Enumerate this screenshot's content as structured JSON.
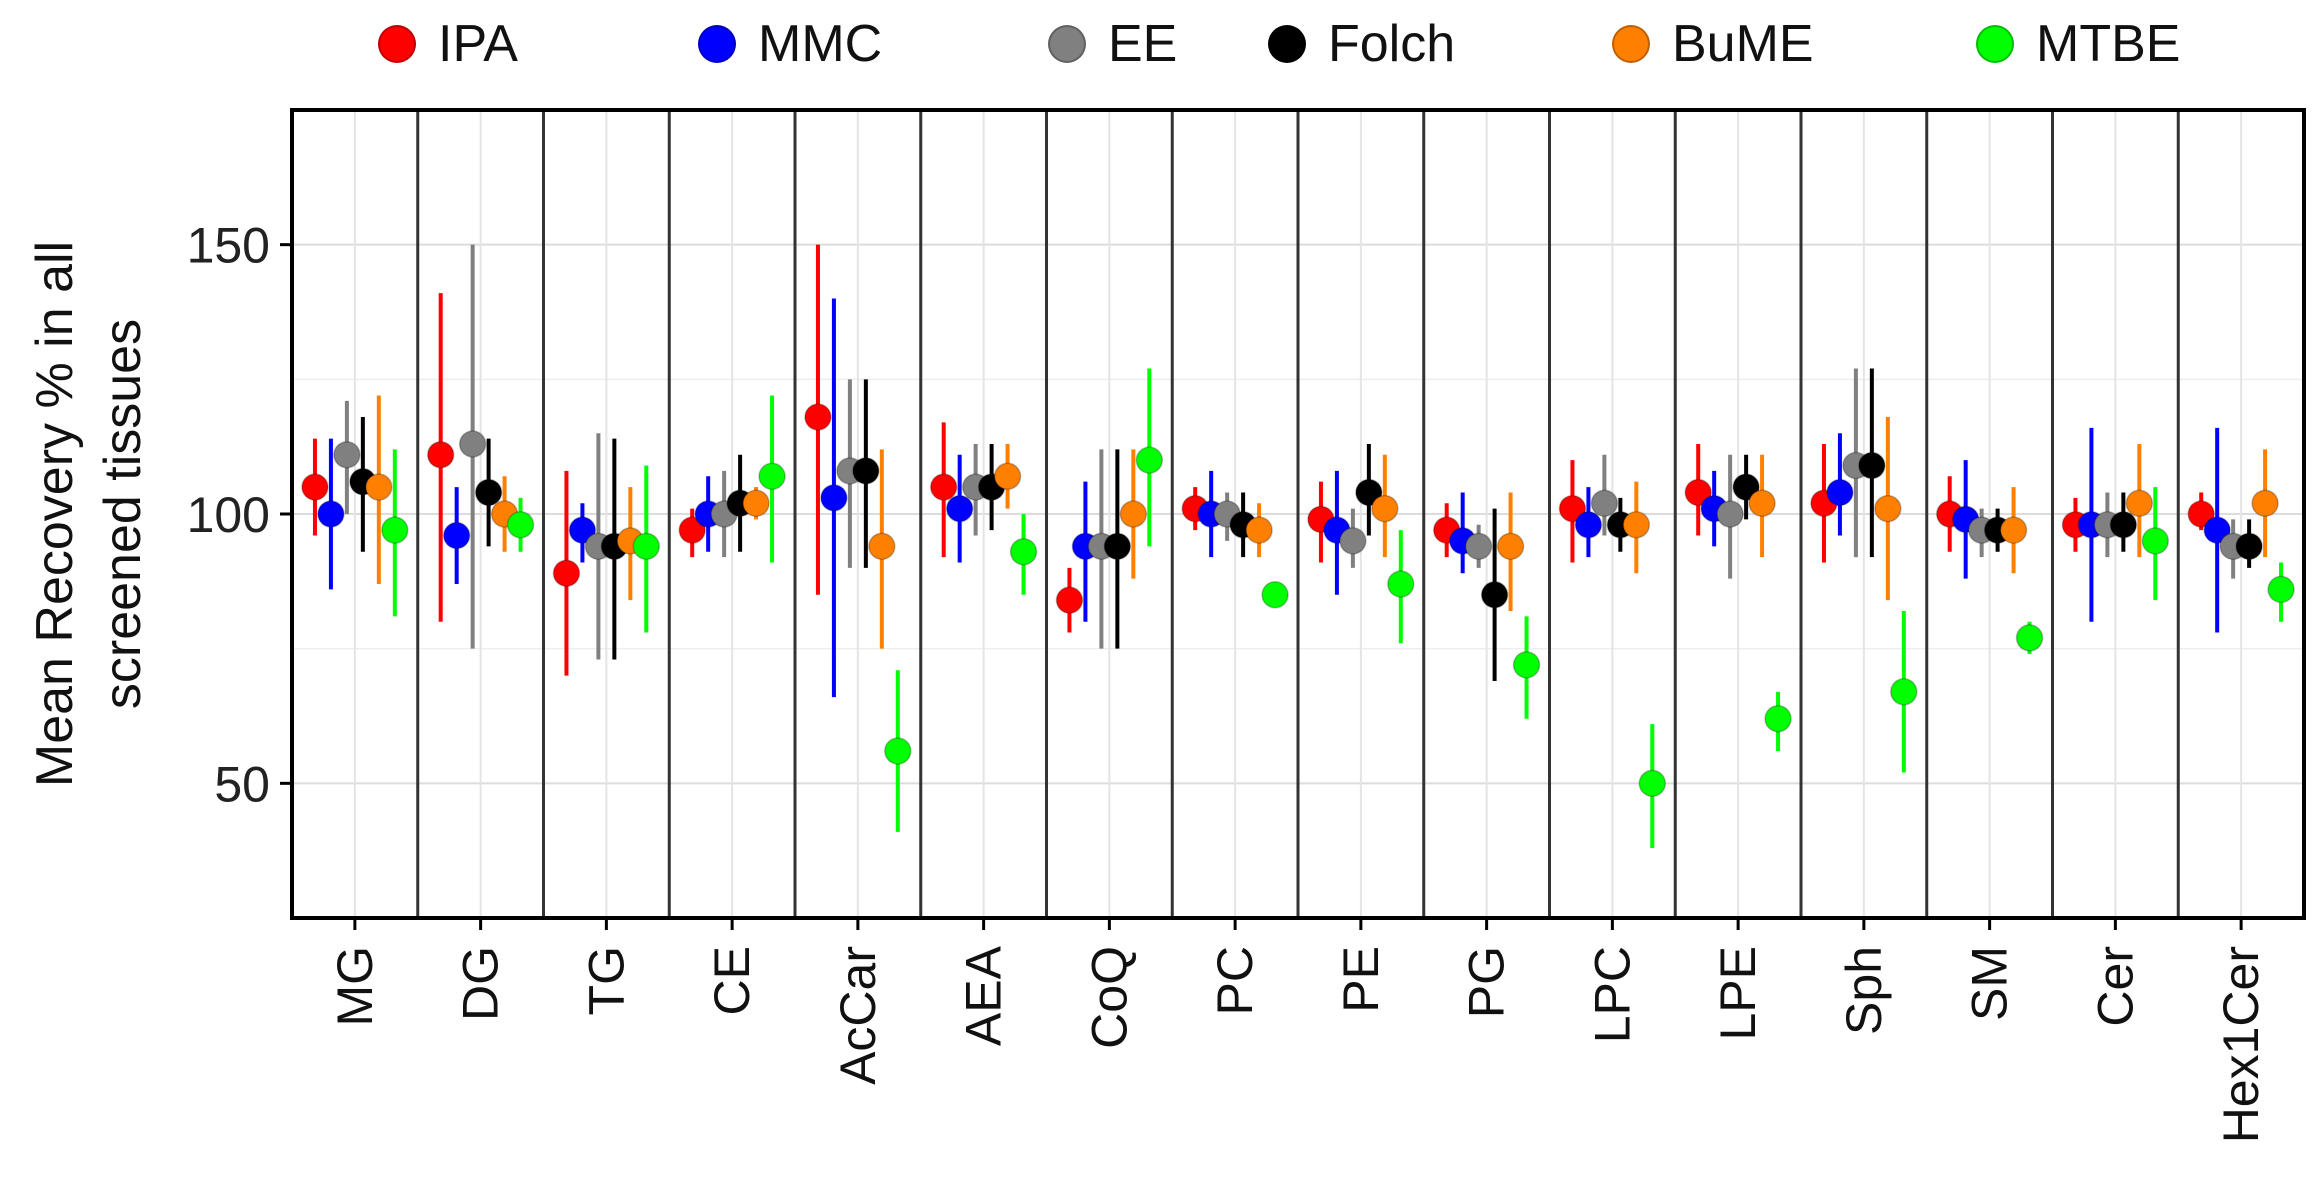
{
  "chart_data": {
    "type": "scatter",
    "subtype": "dot-and-error-bar (mean with range), grouped by lipid class",
    "ylabel_lines": [
      "Mean Recovery % in all",
      "screened tissues"
    ],
    "xlabel": "",
    "ylim": [
      25,
      175
    ],
    "yticks": [
      50,
      100,
      150
    ],
    "grid": true,
    "legend_position": "top",
    "categories": [
      "MG",
      "DG",
      "TG",
      "CE",
      "AcCar",
      "AEA",
      "CoQ",
      "PC",
      "PE",
      "PG",
      "LPC",
      "LPE",
      "Sph",
      "SM",
      "Cer",
      "Hex1Cer"
    ],
    "series": [
      {
        "name": "IPA",
        "color": "#ff0000",
        "values": [
          105,
          111,
          89,
          97,
          118,
          105,
          84,
          101,
          99,
          97,
          101,
          104,
          102,
          100,
          98,
          100
        ],
        "lower": [
          96,
          80,
          70,
          92,
          85,
          92,
          78,
          97,
          91,
          92,
          91,
          96,
          91,
          93,
          93,
          97
        ],
        "upper": [
          114,
          141,
          108,
          101,
          150,
          117,
          90,
          105,
          106,
          102,
          110,
          113,
          113,
          107,
          103,
          104
        ]
      },
      {
        "name": "MMC",
        "color": "#0000ff",
        "values": [
          100,
          96,
          97,
          100,
          103,
          101,
          94,
          100,
          97,
          95,
          98,
          101,
          104,
          99,
          98,
          97
        ],
        "lower": [
          86,
          87,
          91,
          93,
          66,
          91,
          80,
          92,
          85,
          89,
          92,
          94,
          96,
          88,
          80,
          78
        ],
        "upper": [
          114,
          105,
          102,
          107,
          140,
          111,
          106,
          108,
          108,
          104,
          105,
          108,
          115,
          110,
          116,
          116
        ]
      },
      {
        "name": "EE",
        "color": "#808080",
        "values": [
          111,
          113,
          94,
          100,
          108,
          105,
          94,
          100,
          95,
          94,
          102,
          100,
          109,
          97,
          98,
          94
        ],
        "lower": [
          100,
          75,
          73,
          92,
          90,
          96,
          75,
          95,
          90,
          90,
          96,
          88,
          92,
          92,
          92,
          88
        ],
        "upper": [
          121,
          150,
          115,
          108,
          125,
          113,
          112,
          104,
          101,
          98,
          111,
          111,
          127,
          101,
          104,
          99
        ]
      },
      {
        "name": "Folch",
        "color": "#000000",
        "values": [
          106,
          104,
          94,
          102,
          108,
          105,
          94,
          98,
          104,
          85,
          98,
          105,
          109,
          97,
          98,
          94
        ],
        "lower": [
          93,
          94,
          73,
          93,
          90,
          97,
          75,
          92,
          96,
          69,
          93,
          99,
          92,
          93,
          93,
          90
        ],
        "upper": [
          118,
          114,
          114,
          111,
          125,
          113,
          112,
          104,
          113,
          101,
          103,
          111,
          127,
          101,
          104,
          99
        ]
      },
      {
        "name": "BuME",
        "color": "#ff8000",
        "values": [
          105,
          100,
          95,
          102,
          94,
          107,
          100,
          97,
          101,
          94,
          98,
          102,
          101,
          97,
          102,
          102
        ],
        "lower": [
          87,
          93,
          84,
          99,
          75,
          101,
          88,
          92,
          92,
          82,
          89,
          92,
          84,
          89,
          92,
          92
        ],
        "upper": [
          122,
          107,
          105,
          105,
          112,
          113,
          112,
          102,
          111,
          104,
          106,
          111,
          118,
          105,
          113,
          112
        ]
      },
      {
        "name": "MTBE",
        "color": "#00ff00",
        "values": [
          97,
          98,
          94,
          107,
          56,
          93,
          110,
          85,
          87,
          72,
          50,
          62,
          67,
          77,
          95,
          86
        ],
        "lower": [
          81,
          93,
          78,
          91,
          41,
          85,
          94,
          83,
          76,
          62,
          38,
          56,
          52,
          74,
          84,
          80
        ],
        "upper": [
          112,
          103,
          109,
          122,
          71,
          100,
          127,
          87,
          97,
          81,
          61,
          67,
          82,
          80,
          105,
          91
        ]
      }
    ]
  }
}
